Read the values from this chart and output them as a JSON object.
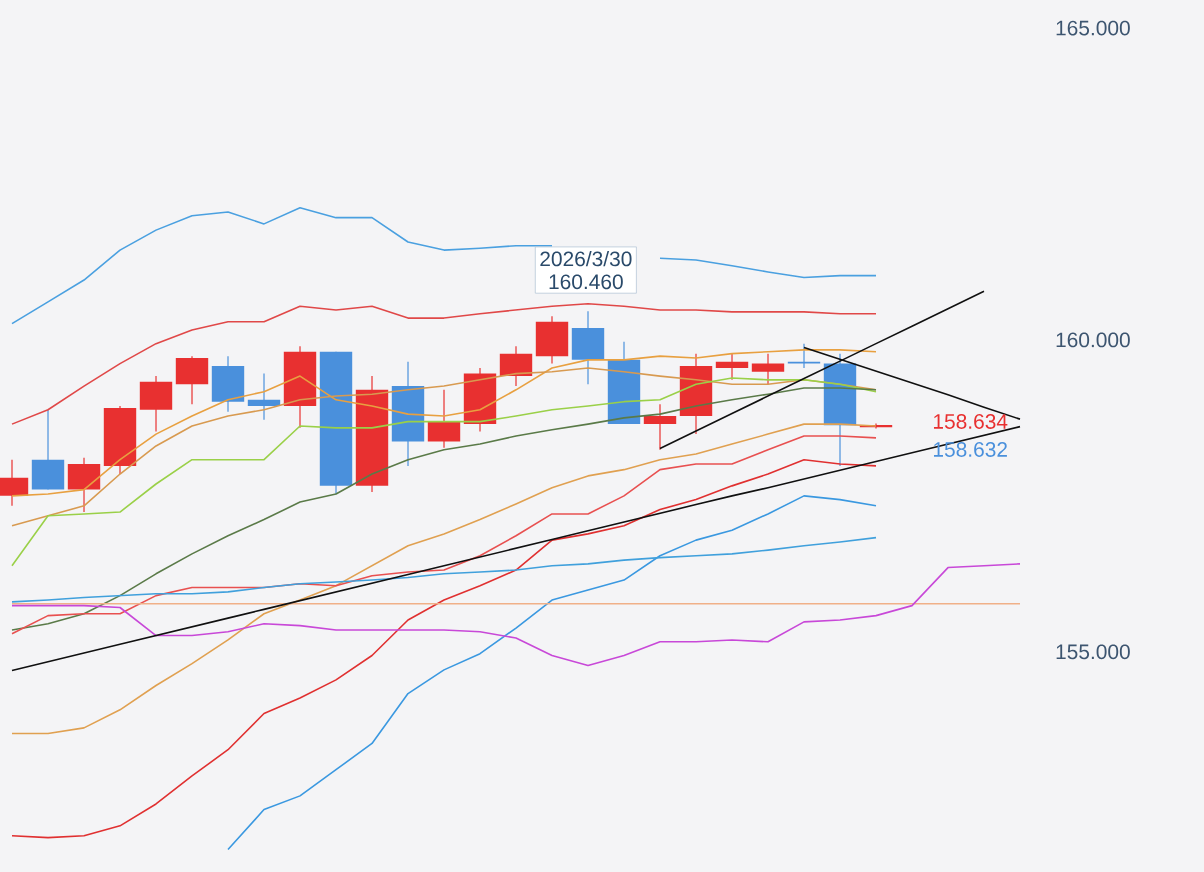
{
  "chart_data": {
    "type": "candlestick",
    "categories": [
      null,
      null,
      null,
      null,
      null,
      null,
      null,
      null,
      null,
      null,
      null,
      null,
      null,
      null,
      null,
      null,
      null,
      null,
      null,
      null,
      null,
      null,
      null,
      null,
      null,
      null,
      null,
      null,
      null
    ],
    "ohlc": [
      [
        157.5,
        158.08,
        157.34,
        157.79
      ],
      [
        158.08,
        158.88,
        157.6,
        157.6
      ],
      [
        157.6,
        158.11,
        157.24,
        158.01
      ],
      [
        157.98,
        158.94,
        157.85,
        158.91
      ],
      [
        158.88,
        159.42,
        158.53,
        159.33
      ],
      [
        159.29,
        159.74,
        158.97,
        159.71
      ],
      [
        159.58,
        159.74,
        158.85,
        159.01
      ],
      [
        159.04,
        159.46,
        158.72,
        158.94
      ],
      [
        158.94,
        159.9,
        158.59,
        159.81
      ],
      [
        159.81,
        159.81,
        157.53,
        157.66
      ],
      [
        157.66,
        159.42,
        157.56,
        159.2
      ],
      [
        159.26,
        159.65,
        157.98,
        158.37
      ],
      [
        158.37,
        159.2,
        158.27,
        158.69
      ],
      [
        158.65,
        159.55,
        158.53,
        159.46
      ],
      [
        159.42,
        159.9,
        159.26,
        159.78
      ],
      [
        159.74,
        160.38,
        159.62,
        160.29
      ],
      [
        160.19,
        160.46,
        159.29,
        159.68
      ],
      [
        159.68,
        159.97,
        158.65,
        158.65
      ],
      [
        158.65,
        158.97,
        158.24,
        158.78
      ],
      [
        158.78,
        159.78,
        158.49,
        159.58
      ],
      [
        159.55,
        159.78,
        159.36,
        159.65
      ],
      [
        159.49,
        159.78,
        159.29,
        159.62
      ],
      [
        159.65,
        159.94,
        159.55,
        159.62
      ],
      [
        159.62,
        159.78,
        157.98,
        158.63
      ],
      [
        158.6,
        158.66,
        158.58,
        158.634
      ],
      null,
      null,
      null,
      null
    ],
    "colors": [
      "#e83030",
      "#4a90dc",
      "#e83030",
      "#e83030",
      "#e83030",
      "#e83030",
      "#4a90dc",
      "#4a90dc",
      "#e83030",
      "#4a90dc",
      "#e83030",
      "#4a90dc",
      "#e83030",
      "#e83030",
      "#e83030",
      "#e83030",
      "#4a90dc",
      "#4a90dc",
      "#e83030",
      "#e83030",
      "#e83030",
      "#e83030",
      "#4a90dc",
      "#4a90dc",
      "#e83030",
      null,
      null,
      null,
      null
    ],
    "series": [
      {
        "type": "line",
        "color": "#4aa0e0",
        "values": [
          160.26,
          160.61,
          160.96,
          161.44,
          161.76,
          161.99,
          162.05,
          161.86,
          162.12,
          161.96,
          161.96,
          161.57,
          161.44,
          161.47,
          161.51,
          161.51,
          null,
          null,
          161.31,
          161.28,
          161.19,
          161.09,
          161.0,
          161.03,
          161.03,
          null,
          null,
          null,
          null
        ]
      },
      {
        "type": "line",
        "color": "#e04848",
        "values": [
          158.65,
          158.88,
          159.26,
          159.62,
          159.94,
          160.16,
          160.29,
          160.29,
          160.54,
          160.48,
          160.54,
          160.35,
          160.35,
          160.42,
          160.48,
          160.54,
          160.58,
          160.54,
          160.48,
          160.48,
          160.45,
          160.45,
          160.45,
          160.42,
          160.42,
          null,
          null,
          null,
          null
        ]
      },
      {
        "type": "line",
        "color": "#e8a040",
        "values": [
          157.5,
          157.53,
          157.6,
          158.08,
          158.49,
          158.78,
          159.04,
          159.17,
          159.42,
          159.04,
          158.94,
          158.81,
          158.78,
          158.88,
          159.2,
          159.55,
          159.68,
          159.68,
          159.74,
          159.71,
          159.78,
          159.81,
          159.84,
          159.84,
          159.81,
          null,
          null,
          null,
          null
        ]
      },
      {
        "type": "line",
        "color": "#d89a50",
        "values": [
          157.02,
          157.18,
          157.34,
          157.85,
          158.3,
          158.62,
          158.78,
          158.88,
          159.04,
          159.1,
          159.13,
          159.2,
          159.26,
          159.36,
          159.46,
          159.49,
          159.55,
          159.49,
          159.42,
          159.36,
          159.29,
          159.29,
          159.36,
          159.29,
          159.2,
          null,
          null,
          null,
          null
        ]
      },
      {
        "type": "line",
        "color": "#9ad048",
        "values": [
          156.38,
          157.18,
          157.21,
          157.24,
          157.69,
          158.08,
          158.08,
          158.08,
          158.62,
          158.59,
          158.59,
          158.69,
          158.69,
          158.69,
          158.78,
          158.88,
          158.94,
          159.01,
          159.04,
          159.29,
          159.39,
          159.36,
          159.36,
          159.29,
          159.17,
          null,
          null,
          null,
          null
        ]
      },
      {
        "type": "line",
        "color": "#5a7a48",
        "values": [
          155.35,
          155.45,
          155.61,
          155.9,
          156.25,
          156.57,
          156.86,
          157.12,
          157.4,
          157.53,
          157.85,
          158.08,
          158.24,
          158.33,
          158.46,
          158.56,
          158.65,
          158.75,
          158.81,
          158.94,
          159.04,
          159.13,
          159.23,
          159.23,
          159.2,
          null,
          null,
          null,
          null
        ]
      },
      {
        "type": "line",
        "color": "#e0a050",
        "values": [
          153.69,
          153.69,
          153.78,
          154.07,
          154.46,
          154.81,
          155.19,
          155.61,
          155.83,
          156.06,
          156.38,
          156.7,
          156.89,
          157.12,
          157.37,
          157.63,
          157.82,
          157.92,
          158.08,
          158.17,
          158.33,
          158.49,
          158.65,
          158.65,
          158.62,
          null,
          null,
          null,
          null
        ]
      },
      {
        "type": "line",
        "color": "#e85050",
        "values": [
          155.29,
          155.58,
          155.61,
          155.61,
          155.9,
          156.03,
          156.03,
          156.03,
          156.09,
          156.06,
          156.22,
          156.28,
          156.31,
          156.54,
          156.86,
          157.21,
          157.21,
          157.5,
          157.92,
          158.01,
          158.01,
          158.24,
          158.46,
          158.46,
          158.43,
          null,
          null,
          null,
          null
        ]
      },
      {
        "type": "line",
        "color": "#e03030",
        "values": [
          152.05,
          152.02,
          152.05,
          152.21,
          152.56,
          153.01,
          153.43,
          154.01,
          154.26,
          154.55,
          154.94,
          155.51,
          155.83,
          156.06,
          156.31,
          156.79,
          156.89,
          157.02,
          157.28,
          157.44,
          157.66,
          157.85,
          158.08,
          158.01,
          157.98,
          null,
          null,
          null,
          null
        ]
      },
      {
        "type": "line",
        "color": "#3a98e0",
        "values": [
          null,
          null,
          null,
          null,
          null,
          null,
          151.83,
          152.47,
          152.69,
          153.11,
          153.53,
          154.33,
          154.71,
          154.97,
          155.38,
          155.83,
          155.99,
          156.15,
          156.54,
          156.79,
          156.95,
          157.21,
          157.5,
          157.44,
          157.34,
          null,
          null,
          null,
          null
        ]
      },
      {
        "type": "line",
        "color": "#40a0dc",
        "values": [
          155.8,
          155.83,
          155.87,
          155.9,
          155.93,
          155.93,
          155.96,
          156.03,
          156.09,
          156.12,
          156.15,
          156.19,
          156.25,
          156.28,
          156.31,
          156.38,
          156.41,
          156.47,
          156.51,
          156.54,
          156.57,
          156.63,
          156.7,
          156.76,
          156.83,
          null,
          null,
          null,
          null
        ]
      },
      {
        "type": "line",
        "color": "#f0b088",
        "values": [
          155.77,
          155.77,
          155.77,
          155.77,
          155.77,
          155.77,
          155.77,
          155.77,
          155.77,
          155.77,
          155.77,
          155.77,
          155.77,
          155.77,
          155.77,
          155.77,
          155.77,
          155.77,
          155.77,
          155.77,
          155.77,
          155.77,
          155.77,
          155.77,
          155.77,
          155.77,
          155.77,
          155.77,
          155.77
        ]
      },
      {
        "type": "line",
        "color": "#c848d8",
        "values": [
          155.74,
          155.74,
          155.74,
          155.71,
          155.26,
          155.26,
          155.32,
          155.45,
          155.42,
          155.35,
          155.35,
          155.35,
          155.35,
          155.32,
          155.22,
          154.94,
          154.78,
          154.94,
          155.16,
          155.16,
          155.19,
          155.16,
          155.48,
          155.51,
          155.58,
          155.74,
          156.35,
          156.38,
          156.41
        ]
      },
      {
        "type": "line",
        "color": "#101010",
        "values": [
          154.7,
          154.84,
          154.98,
          155.12,
          155.26,
          155.4,
          155.54,
          155.68,
          155.82,
          155.96,
          156.1,
          156.24,
          156.38,
          156.52,
          156.66,
          156.8,
          156.94,
          157.08,
          157.22,
          157.36,
          157.5,
          157.63,
          157.77,
          157.91,
          158.05,
          158.19,
          158.33,
          158.47,
          158.61
        ]
      },
      {
        "type": "line",
        "color": "#101010",
        "values": [
          null,
          null,
          null,
          null,
          null,
          null,
          null,
          null,
          null,
          null,
          null,
          null,
          null,
          null,
          null,
          null,
          null,
          null,
          158.26,
          158.54,
          158.82,
          159.1,
          159.38,
          159.66,
          159.94,
          160.22,
          160.5,
          160.78,
          null
        ]
      },
      {
        "type": "line",
        "color": "#101010",
        "values": [
          null,
          null,
          null,
          null,
          null,
          null,
          null,
          null,
          null,
          null,
          null,
          null,
          null,
          null,
          null,
          null,
          null,
          null,
          null,
          null,
          null,
          null,
          159.88,
          159.69,
          159.5,
          159.31,
          159.12,
          158.92,
          158.73
        ]
      }
    ],
    "ylim": [
      151.47,
      165.45
    ],
    "yticks": [
      {
        "value": 155,
        "label": "155.000"
      },
      {
        "value": 160,
        "label": "160.000"
      },
      {
        "value": 165,
        "label": "165.000"
      }
    ],
    "tick_labels": "y",
    "annotations": [
      "2026/3/30",
      "160.460",
      "158.634",
      "158.632"
    ]
  }
}
